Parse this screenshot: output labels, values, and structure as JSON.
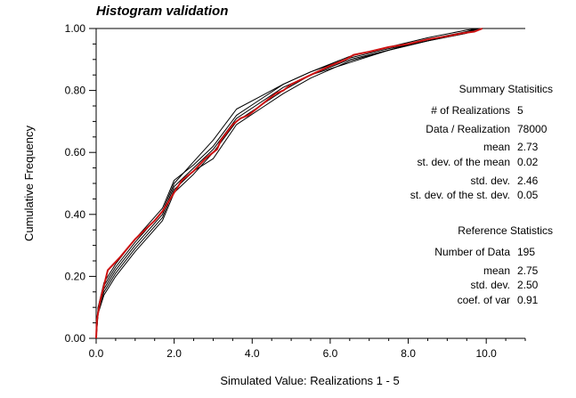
{
  "chart_data": {
    "type": "line",
    "title": "Histogram validation",
    "xlabel": "Simulated Value:  Realizations   1 -  5",
    "ylabel": "Cumulative Frequency",
    "xlim": [
      0,
      11.0
    ],
    "ylim": [
      0,
      1.0
    ],
    "x_ticks": [
      0,
      2,
      4,
      6,
      8,
      10
    ],
    "x_tick_labels": [
      "0.0",
      "2.0",
      "4.0",
      "6.0",
      "8.0",
      "10.0"
    ],
    "y_ticks": [
      0,
      0.2,
      0.4,
      0.6,
      0.8,
      1.0
    ],
    "y_tick_labels": [
      "0.00",
      "0.20",
      "0.40",
      "0.60",
      "0.80",
      "1.00"
    ],
    "grid": false,
    "series": [
      {
        "color": "#000000",
        "x": [
          0,
          0.05,
          0.2,
          0.5,
          1.0,
          1.7,
          2.0,
          2.5,
          3.0,
          3.6,
          4.2,
          4.8,
          5.5,
          6.5,
          7.5,
          8.5,
          9.5,
          9.8
        ],
        "y": [
          0,
          0.08,
          0.14,
          0.2,
          0.28,
          0.38,
          0.47,
          0.53,
          0.6,
          0.7,
          0.75,
          0.8,
          0.85,
          0.89,
          0.93,
          0.96,
          0.99,
          1.0
        ]
      },
      {
        "color": "#000000",
        "x": [
          0,
          0.05,
          0.2,
          0.5,
          1.0,
          1.7,
          2.0,
          2.5,
          3.0,
          3.6,
          4.2,
          4.8,
          5.5,
          6.5,
          7.5,
          8.5,
          9.5,
          9.8
        ],
        "y": [
          0,
          0.1,
          0.17,
          0.23,
          0.31,
          0.41,
          0.5,
          0.57,
          0.64,
          0.74,
          0.78,
          0.82,
          0.86,
          0.91,
          0.94,
          0.97,
          0.995,
          1.0
        ]
      },
      {
        "color": "#000000",
        "x": [
          0,
          0.05,
          0.2,
          0.5,
          1.0,
          1.7,
          2.0,
          2.5,
          3.0,
          3.6,
          4.2,
          4.8,
          5.5,
          6.5,
          7.5,
          8.5,
          9.5,
          9.8
        ],
        "y": [
          0,
          0.09,
          0.16,
          0.22,
          0.3,
          0.4,
          0.49,
          0.55,
          0.61,
          0.71,
          0.76,
          0.81,
          0.85,
          0.9,
          0.93,
          0.965,
          0.99,
          1.0
        ]
      },
      {
        "color": "#000000",
        "x": [
          0,
          0.05,
          0.2,
          0.5,
          1.0,
          1.7,
          2.0,
          2.5,
          3.0,
          3.6,
          4.2,
          4.8,
          5.5,
          6.5,
          7.5,
          8.5,
          9.5,
          9.8
        ],
        "y": [
          0,
          0.1,
          0.18,
          0.24,
          0.32,
          0.42,
          0.51,
          0.56,
          0.62,
          0.72,
          0.77,
          0.82,
          0.86,
          0.905,
          0.935,
          0.96,
          0.985,
          1.0
        ]
      },
      {
        "color": "#000000",
        "x": [
          0,
          0.05,
          0.2,
          0.5,
          1.0,
          1.7,
          2.0,
          2.5,
          3.0,
          3.6,
          4.2,
          4.8,
          5.5,
          6.5,
          7.5,
          8.5,
          9.5,
          9.8
        ],
        "y": [
          0,
          0.09,
          0.15,
          0.21,
          0.29,
          0.39,
          0.48,
          0.54,
          0.58,
          0.69,
          0.74,
          0.79,
          0.84,
          0.895,
          0.93,
          0.96,
          0.985,
          1.0
        ]
      },
      {
        "color": "#cc1111",
        "x": [
          0,
          0.02,
          0.1,
          0.3,
          0.6,
          1.0,
          1.5,
          1.7,
          2.0,
          2.2,
          2.5,
          2.8,
          3.1,
          3.2,
          3.5,
          3.7,
          3.9,
          4.1,
          4.4,
          4.6,
          4.8,
          5.0,
          5.5,
          6.0,
          6.4,
          6.6,
          7.0,
          7.5,
          8.0,
          8.5,
          9.0,
          9.4,
          9.7,
          9.8,
          9.9
        ],
        "y": [
          0,
          0.06,
          0.12,
          0.22,
          0.26,
          0.32,
          0.38,
          0.41,
          0.47,
          0.51,
          0.54,
          0.58,
          0.61,
          0.64,
          0.69,
          0.71,
          0.72,
          0.74,
          0.77,
          0.79,
          0.8,
          0.82,
          0.85,
          0.88,
          0.9,
          0.915,
          0.925,
          0.94,
          0.95,
          0.965,
          0.975,
          0.985,
          0.99,
          0.995,
          1.0
        ]
      }
    ],
    "annotations": {
      "summary_header": "Summary Statisitics",
      "summary": [
        {
          "label": "# of Realizations",
          "value": "5"
        },
        {
          "label": "Data / Realization",
          "value": "78000"
        },
        {
          "label": "mean",
          "value": "2.73"
        },
        {
          "label": "st. dev. of the mean",
          "value": "0.02"
        },
        {
          "label": "std. dev.",
          "value": "2.46"
        },
        {
          "label": "st. dev. of the st. dev.",
          "value": "0.05"
        }
      ],
      "reference_header": "Reference Statistics",
      "reference": [
        {
          "label": "Number of Data",
          "value": "195"
        },
        {
          "label": "mean",
          "value": "2.75"
        },
        {
          "label": "std. dev.",
          "value": "2.50"
        },
        {
          "label": "coef. of var",
          "value": "0.91"
        }
      ]
    }
  }
}
